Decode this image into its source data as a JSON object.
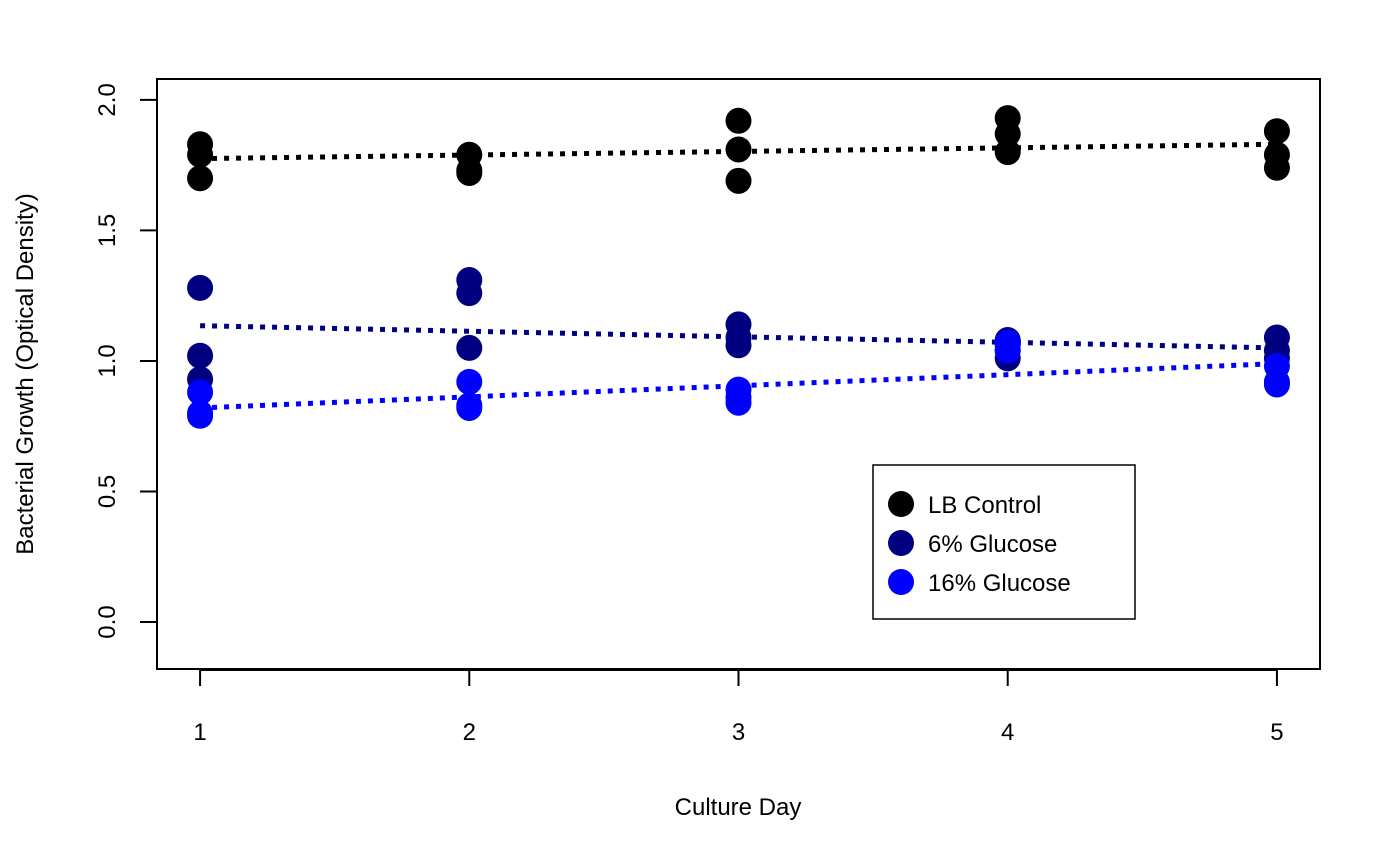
{
  "chart_data": {
    "type": "scatter",
    "title": "",
    "xlabel": "Culture Day",
    "ylabel": "Bacterial Growth (Optical Density)",
    "xlim": [
      0.84,
      5.16
    ],
    "ylim": [
      -0.18,
      2.08
    ],
    "xticks": [
      1,
      2,
      3,
      4,
      5
    ],
    "yticks": [
      0.0,
      0.5,
      1.0,
      1.5,
      2.0
    ],
    "xtick_labels": [
      "1",
      "2",
      "3",
      "4",
      "5"
    ],
    "ytick_labels": [
      "0.0",
      "0.5",
      "1.0",
      "1.5",
      "2.0"
    ],
    "grid": false,
    "legend_position": "bottom-right",
    "series": [
      {
        "name": "LB Control",
        "color": "#000000",
        "points": [
          {
            "x": 1,
            "y": 1.83
          },
          {
            "x": 1,
            "y": 1.79
          },
          {
            "x": 1,
            "y": 1.7
          },
          {
            "x": 2,
            "y": 1.79
          },
          {
            "x": 2,
            "y": 1.73
          },
          {
            "x": 2,
            "y": 1.72
          },
          {
            "x": 3,
            "y": 1.92
          },
          {
            "x": 3,
            "y": 1.81
          },
          {
            "x": 3,
            "y": 1.69
          },
          {
            "x": 4,
            "y": 1.93
          },
          {
            "x": 4,
            "y": 1.87
          },
          {
            "x": 4,
            "y": 1.8
          },
          {
            "x": 5,
            "y": 1.88
          },
          {
            "x": 5,
            "y": 1.79
          },
          {
            "x": 5,
            "y": 1.74
          }
        ],
        "trend": {
          "x": [
            1,
            5
          ],
          "y": [
            1.775,
            1.83
          ]
        }
      },
      {
        "name": "6% Glucose",
        "color": "#000080",
        "points": [
          {
            "x": 1,
            "y": 1.28
          },
          {
            "x": 1,
            "y": 1.02
          },
          {
            "x": 1,
            "y": 0.93
          },
          {
            "x": 2,
            "y": 1.31
          },
          {
            "x": 2,
            "y": 1.26
          },
          {
            "x": 2,
            "y": 1.05
          },
          {
            "x": 3,
            "y": 1.14
          },
          {
            "x": 3,
            "y": 1.09
          },
          {
            "x": 3,
            "y": 1.06
          },
          {
            "x": 4,
            "y": 1.08
          },
          {
            "x": 4,
            "y": 1.04
          },
          {
            "x": 4,
            "y": 1.01
          },
          {
            "x": 5,
            "y": 1.09
          },
          {
            "x": 5,
            "y": 1.04
          },
          {
            "x": 5,
            "y": 1.01
          }
        ],
        "trend": {
          "x": [
            1,
            5
          ],
          "y": [
            1.135,
            1.05
          ]
        }
      },
      {
        "name": "16% Glucose",
        "color": "#0000ff",
        "points": [
          {
            "x": 1,
            "y": 0.88
          },
          {
            "x": 1,
            "y": 0.8
          },
          {
            "x": 1,
            "y": 0.79
          },
          {
            "x": 2,
            "y": 0.92
          },
          {
            "x": 2,
            "y": 0.83
          },
          {
            "x": 2,
            "y": 0.82
          },
          {
            "x": 3,
            "y": 0.89
          },
          {
            "x": 3,
            "y": 0.86
          },
          {
            "x": 3,
            "y": 0.84
          },
          {
            "x": 4,
            "y": 1.07
          },
          {
            "x": 4,
            "y": 1.06
          },
          {
            "x": 4,
            "y": 1.04
          },
          {
            "x": 5,
            "y": 0.98
          },
          {
            "x": 5,
            "y": 0.92
          },
          {
            "x": 5,
            "y": 0.91
          }
        ],
        "trend": {
          "x": [
            1,
            5
          ],
          "y": [
            0.82,
            0.99
          ]
        }
      }
    ]
  }
}
